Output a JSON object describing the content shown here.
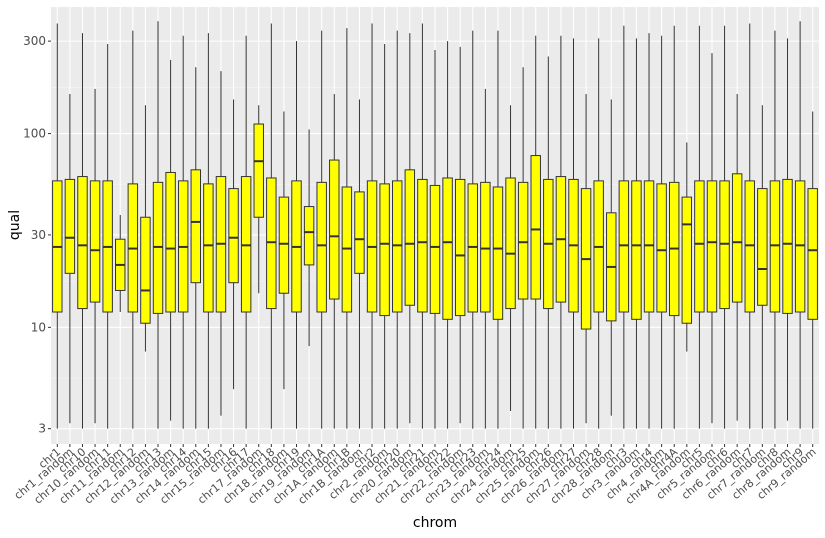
{
  "chart_data": {
    "type": "boxplot",
    "xlabel": "chrom",
    "ylabel": "qual",
    "y_scale": "log10",
    "ylim": [
      2.5,
      450
    ],
    "y_ticks": [
      3,
      10,
      30,
      100,
      300
    ],
    "grid": true,
    "fill_color": "#ffff00",
    "categories": [
      "chr1",
      "chr1_random",
      "chr10",
      "chr10_random",
      "chr11",
      "chr11_random",
      "chr12",
      "chr12_random",
      "chr13",
      "chr13_random",
      "chr14",
      "chr14_random",
      "chr15",
      "chr15_random",
      "chr16",
      "chr17",
      "chr17_random",
      "chr18",
      "chr18_random",
      "chr19",
      "chr19_random",
      "chr1A",
      "chr1A_random",
      "chr1B",
      "chr1B_random",
      "chr2",
      "chr2_random",
      "chr20",
      "chr20_random",
      "chr21",
      "chr21_random",
      "chr22",
      "chr22_random",
      "chr23",
      "chr23_random",
      "chr24",
      "chr24_random",
      "chr25",
      "chr25_random",
      "chr26",
      "chr26_random",
      "chr27",
      "chr27_random",
      "chr28",
      "chr28_random",
      "chr3",
      "chr3_random",
      "chr4",
      "chr4_random",
      "chr4A",
      "chr4A_random",
      "chr5",
      "chr5_random",
      "chr6",
      "chr6_random",
      "chr7",
      "chr7_random",
      "chr8",
      "chr8_random",
      "chr9",
      "chr9_random"
    ],
    "boxes": [
      {
        "min": 3.0,
        "q1": 12.0,
        "median": 26.0,
        "q3": 57.0,
        "max": 370
      },
      {
        "min": 3.2,
        "q1": 19.0,
        "median": 29.0,
        "q3": 58.0,
        "max": 160
      },
      {
        "min": 3.0,
        "q1": 12.5,
        "median": 26.5,
        "q3": 60.0,
        "max": 330
      },
      {
        "min": 3.2,
        "q1": 13.5,
        "median": 25.0,
        "q3": 57.0,
        "max": 170
      },
      {
        "min": 3.0,
        "q1": 12.0,
        "median": 26.0,
        "q3": 57.0,
        "max": 290
      },
      {
        "min": 12.0,
        "q1": 15.5,
        "median": 21.0,
        "q3": 28.5,
        "max": 38
      },
      {
        "min": 3.0,
        "q1": 12.0,
        "median": 25.5,
        "q3": 55.0,
        "max": 340
      },
      {
        "min": 7.5,
        "q1": 10.5,
        "median": 15.5,
        "q3": 37.0,
        "max": 140
      },
      {
        "min": 3.0,
        "q1": 11.8,
        "median": 26.0,
        "q3": 56.0,
        "max": 380
      },
      {
        "min": 3.3,
        "q1": 12.0,
        "median": 25.5,
        "q3": 63.0,
        "max": 240
      },
      {
        "min": 3.0,
        "q1": 12.0,
        "median": 26.0,
        "q3": 57.0,
        "max": 320
      },
      {
        "min": 3.0,
        "q1": 17.0,
        "median": 35.0,
        "q3": 65.0,
        "max": 220
      },
      {
        "min": 3.0,
        "q1": 12.0,
        "median": 26.5,
        "q3": 55.0,
        "max": 330
      },
      {
        "min": 3.5,
        "q1": 12.0,
        "median": 27.0,
        "q3": 60.0,
        "max": 210
      },
      {
        "min": 4.8,
        "q1": 17.0,
        "median": 29.0,
        "q3": 52.0,
        "max": 150
      },
      {
        "min": 3.0,
        "q1": 12.0,
        "median": 26.5,
        "q3": 60.0,
        "max": 320
      },
      {
        "min": 15.0,
        "q1": 37.0,
        "median": 72.0,
        "q3": 112.0,
        "max": 140
      },
      {
        "min": 3.0,
        "q1": 12.5,
        "median": 27.5,
        "q3": 59.0,
        "max": 370
      },
      {
        "min": 4.8,
        "q1": 15.0,
        "median": 27.0,
        "q3": 47.0,
        "max": 130
      },
      {
        "min": 3.0,
        "q1": 12.0,
        "median": 26.0,
        "q3": 57.0,
        "max": 300
      },
      {
        "min": 8.0,
        "q1": 21.0,
        "median": 31.0,
        "q3": 42.0,
        "max": 105
      },
      {
        "min": 3.0,
        "q1": 12.0,
        "median": 26.5,
        "q3": 56.0,
        "max": 340
      },
      {
        "min": 3.0,
        "q1": 14.0,
        "median": 29.5,
        "q3": 73.0,
        "max": 160
      },
      {
        "min": 3.0,
        "q1": 12.0,
        "median": 25.5,
        "q3": 53.0,
        "max": 350
      },
      {
        "min": 3.0,
        "q1": 19.0,
        "median": 28.5,
        "q3": 50.0,
        "max": 150
      },
      {
        "min": 3.0,
        "q1": 12.0,
        "median": 26.0,
        "q3": 57.0,
        "max": 370
      },
      {
        "min": 3.0,
        "q1": 11.5,
        "median": 27.0,
        "q3": 55.0,
        "max": 290
      },
      {
        "min": 3.0,
        "q1": 12.0,
        "median": 26.5,
        "q3": 57.0,
        "max": 340
      },
      {
        "min": 3.2,
        "q1": 13.0,
        "median": 27.0,
        "q3": 65.0,
        "max": 330
      },
      {
        "min": 3.0,
        "q1": 12.0,
        "median": 27.5,
        "q3": 58.0,
        "max": 370
      },
      {
        "min": 3.0,
        "q1": 11.8,
        "median": 26.0,
        "q3": 54.0,
        "max": 270
      },
      {
        "min": 3.0,
        "q1": 11.0,
        "median": 27.5,
        "q3": 59.0,
        "max": 300
      },
      {
        "min": 3.2,
        "q1": 11.5,
        "median": 23.5,
        "q3": 58.0,
        "max": 280
      },
      {
        "min": 3.0,
        "q1": 12.0,
        "median": 26.0,
        "q3": 55.0,
        "max": 340
      },
      {
        "min": 3.0,
        "q1": 12.0,
        "median": 25.5,
        "q3": 56.0,
        "max": 170
      },
      {
        "min": 3.0,
        "q1": 11.0,
        "median": 25.5,
        "q3": 53.0,
        "max": 340
      },
      {
        "min": 3.7,
        "q1": 12.5,
        "median": 24.0,
        "q3": 59.0,
        "max": 140
      },
      {
        "min": 3.0,
        "q1": 14.0,
        "median": 27.5,
        "q3": 56.0,
        "max": 220
      },
      {
        "min": 3.0,
        "q1": 14.0,
        "median": 32.0,
        "q3": 77.0,
        "max": 320
      },
      {
        "min": 3.0,
        "q1": 12.5,
        "median": 27.0,
        "q3": 58.0,
        "max": 250
      },
      {
        "min": 3.0,
        "q1": 13.5,
        "median": 28.5,
        "q3": 60.0,
        "max": 320
      },
      {
        "min": 3.0,
        "q1": 12.0,
        "median": 26.5,
        "q3": 58.0,
        "max": 310
      },
      {
        "min": 3.2,
        "q1": 9.8,
        "median": 22.5,
        "q3": 52.0,
        "max": 160
      },
      {
        "min": 3.0,
        "q1": 12.0,
        "median": 26.0,
        "q3": 57.0,
        "max": 310
      },
      {
        "min": 3.5,
        "q1": 10.8,
        "median": 20.5,
        "q3": 39.0,
        "max": 150
      },
      {
        "min": 3.0,
        "q1": 12.0,
        "median": 26.5,
        "q3": 57.0,
        "max": 360
      },
      {
        "min": 3.0,
        "q1": 11.0,
        "median": 26.5,
        "q3": 57.0,
        "max": 310
      },
      {
        "min": 3.0,
        "q1": 12.0,
        "median": 26.5,
        "q3": 57.0,
        "max": 330
      },
      {
        "min": 3.0,
        "q1": 12.0,
        "median": 25.0,
        "q3": 55.0,
        "max": 320
      },
      {
        "min": 3.0,
        "q1": 11.5,
        "median": 25.5,
        "q3": 56.0,
        "max": 360
      },
      {
        "min": 7.5,
        "q1": 10.5,
        "median": 34.0,
        "q3": 47.0,
        "max": 90
      },
      {
        "min": 3.0,
        "q1": 12.0,
        "median": 27.0,
        "q3": 57.0,
        "max": 360
      },
      {
        "min": 3.2,
        "q1": 12.0,
        "median": 27.5,
        "q3": 57.0,
        "max": 260
      },
      {
        "min": 3.0,
        "q1": 12.5,
        "median": 27.0,
        "q3": 57.0,
        "max": 360
      },
      {
        "min": 3.3,
        "q1": 13.5,
        "median": 27.5,
        "q3": 62.0,
        "max": 160
      },
      {
        "min": 3.0,
        "q1": 12.0,
        "median": 26.5,
        "q3": 57.0,
        "max": 370
      },
      {
        "min": 3.0,
        "q1": 13.0,
        "median": 20.0,
        "q3": 52.0,
        "max": 140
      },
      {
        "min": 3.0,
        "q1": 12.0,
        "median": 26.5,
        "q3": 57.0,
        "max": 340
      },
      {
        "min": 3.3,
        "q1": 11.8,
        "median": 27.0,
        "q3": 58.0,
        "max": 310
      },
      {
        "min": 3.0,
        "q1": 12.0,
        "median": 26.5,
        "q3": 57.0,
        "max": 380
      },
      {
        "min": 3.0,
        "q1": 11.0,
        "median": 25.0,
        "q3": 52.0,
        "max": 130
      }
    ]
  }
}
